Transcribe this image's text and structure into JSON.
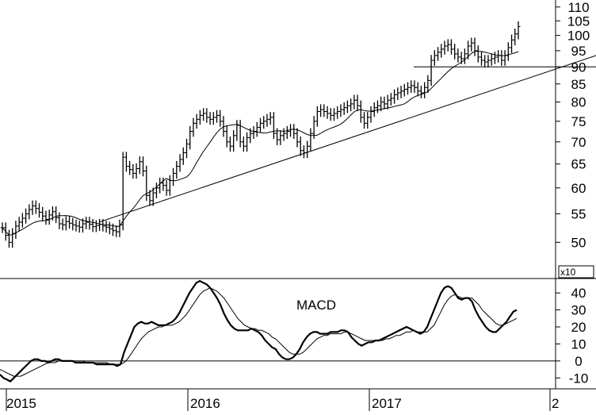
{
  "chart_data": [
    {
      "type": "ohlc",
      "scale": "log",
      "ylim": [
        45,
        112
      ],
      "yticks": [
        50,
        55,
        60,
        65,
        70,
        75,
        80,
        85,
        90,
        95,
        100,
        105,
        110
      ],
      "weekly_closes": [
        52.5,
        51.2,
        50.0,
        51.5,
        52.8,
        53.5,
        54.2,
        55.0,
        55.8,
        56.5,
        56.0,
        55.3,
        54.6,
        54.0,
        54.8,
        55.4,
        54.3,
        53.2,
        53.0,
        53.6,
        53.3,
        53.0,
        52.8,
        52.6,
        53.2,
        53.5,
        53.1,
        52.7,
        52.9,
        53.1,
        52.8,
        52.6,
        52.3,
        52.0,
        51.8,
        53.0,
        66.5,
        64.5,
        63.8,
        63.0,
        64.0,
        65.5,
        63.5,
        58.5,
        57.5,
        59.0,
        60.0,
        61.0,
        60.5,
        59.5,
        61.5,
        63.0,
        64.5,
        66.0,
        67.5,
        69.5,
        72.5,
        74.5,
        75.5,
        76.5,
        77.0,
        76.0,
        75.5,
        76.0,
        76.5,
        75.0,
        72.5,
        70.0,
        69.0,
        71.5,
        74.0,
        70.0,
        69.0,
        71.0,
        72.0,
        72.5,
        73.5,
        74.5,
        75.0,
        75.5,
        76.0,
        72.0,
        70.5,
        71.5,
        72.0,
        72.5,
        73.0,
        72.0,
        70.0,
        68.0,
        67.5,
        69.0,
        72.0,
        75.0,
        77.5,
        78.0,
        77.5,
        77.0,
        76.5,
        77.0,
        77.5,
        78.0,
        78.5,
        79.0,
        79.5,
        80.5,
        79.0,
        76.0,
        74.5,
        76.0,
        77.5,
        78.5,
        79.0,
        80.0,
        79.5,
        80.5,
        81.0,
        82.0,
        82.5,
        83.0,
        83.5,
        84.0,
        84.5,
        84.0,
        83.0,
        82.5,
        84.0,
        86.0,
        92.0,
        93.5,
        94.5,
        95.5,
        96.5,
        97.0,
        95.5,
        94.0,
        93.0,
        92.5,
        94.0,
        96.5,
        97.5,
        95.0,
        93.0,
        92.0,
        91.5,
        92.0,
        92.5,
        93.0,
        93.5,
        92.0,
        93.5,
        96.0,
        98.5,
        100.5,
        103.0
      ],
      "annotations": [
        "horizontal support line at 90",
        "rising trendline",
        "moving average line"
      ]
    },
    {
      "type": "line",
      "title": "MACD",
      "multiplier_label": "x10",
      "ylim": [
        -15,
        48
      ],
      "yticks": [
        -10,
        0,
        10,
        20,
        30,
        40
      ],
      "series": [
        {
          "values": [
            -8,
            -10,
            -11,
            -12,
            -10,
            -8,
            -6,
            -4,
            -2,
            0,
            1,
            1,
            0,
            0,
            -1,
            0,
            1,
            1,
            0,
            0,
            0,
            0,
            -1,
            -1,
            -1,
            -1,
            -1,
            -1,
            -2,
            -2,
            -2,
            -2,
            -2,
            -2,
            -3,
            -2,
            5,
            10,
            15,
            20,
            22,
            23,
            22,
            22,
            23,
            22,
            21,
            21,
            21,
            22,
            23,
            25,
            28,
            32,
            36,
            40,
            43,
            46,
            47,
            46,
            45,
            43,
            40,
            37,
            33,
            28,
            24,
            21,
            19,
            18,
            18,
            18,
            18,
            19,
            18,
            17,
            15,
            12,
            10,
            8,
            7,
            4,
            2,
            1,
            1,
            2,
            4,
            7,
            11,
            14,
            16,
            17,
            17,
            16,
            16,
            16,
            17,
            17,
            17,
            18,
            18,
            17,
            14,
            12,
            10,
            9,
            10,
            11,
            11,
            12,
            12,
            13,
            14,
            15,
            16,
            17,
            18,
            19,
            20,
            19,
            18,
            17,
            16,
            17,
            20,
            25,
            30,
            35,
            40,
            43,
            44,
            43,
            40,
            37,
            36,
            37,
            37,
            35,
            30,
            26,
            23,
            20,
            18,
            17,
            17,
            19,
            21,
            23,
            26,
            29,
            30
          ]
        },
        {
          "values": [
            -5,
            -6,
            -7,
            -8,
            -9,
            -9,
            -9,
            -8,
            -7,
            -6,
            -5,
            -4,
            -3,
            -2,
            -1,
            -1,
            -1,
            0,
            0,
            0,
            0,
            0,
            0,
            0,
            0,
            -1,
            -1,
            -1,
            -1,
            -1,
            -1,
            -1,
            -2,
            -2,
            -2,
            -2,
            -1,
            1,
            4,
            7,
            10,
            13,
            15,
            17,
            18,
            19,
            20,
            20,
            21,
            21,
            21,
            22,
            23,
            25,
            27,
            30,
            33,
            36,
            39,
            41,
            42,
            43,
            42,
            41,
            39,
            37,
            34,
            31,
            28,
            25,
            23,
            21,
            20,
            19,
            19,
            18,
            18,
            17,
            16,
            14,
            13,
            11,
            9,
            7,
            5,
            4,
            4,
            4,
            5,
            7,
            9,
            11,
            13,
            14,
            15,
            15,
            16,
            16,
            16,
            16,
            17,
            17,
            16,
            15,
            14,
            13,
            12,
            12,
            12,
            12,
            12,
            12,
            13,
            13,
            14,
            15,
            15,
            16,
            17,
            17,
            18,
            17,
            17,
            17,
            17,
            19,
            21,
            25,
            29,
            33,
            36,
            38,
            39,
            38,
            37,
            37,
            37,
            37,
            35,
            33,
            30,
            28,
            26,
            24,
            22,
            21,
            21,
            22,
            23,
            24,
            25
          ]
        }
      ],
      "zero_line": true
    }
  ],
  "x_axis": {
    "labels": [
      "2015",
      "2016",
      "2017",
      "2"
    ]
  }
}
